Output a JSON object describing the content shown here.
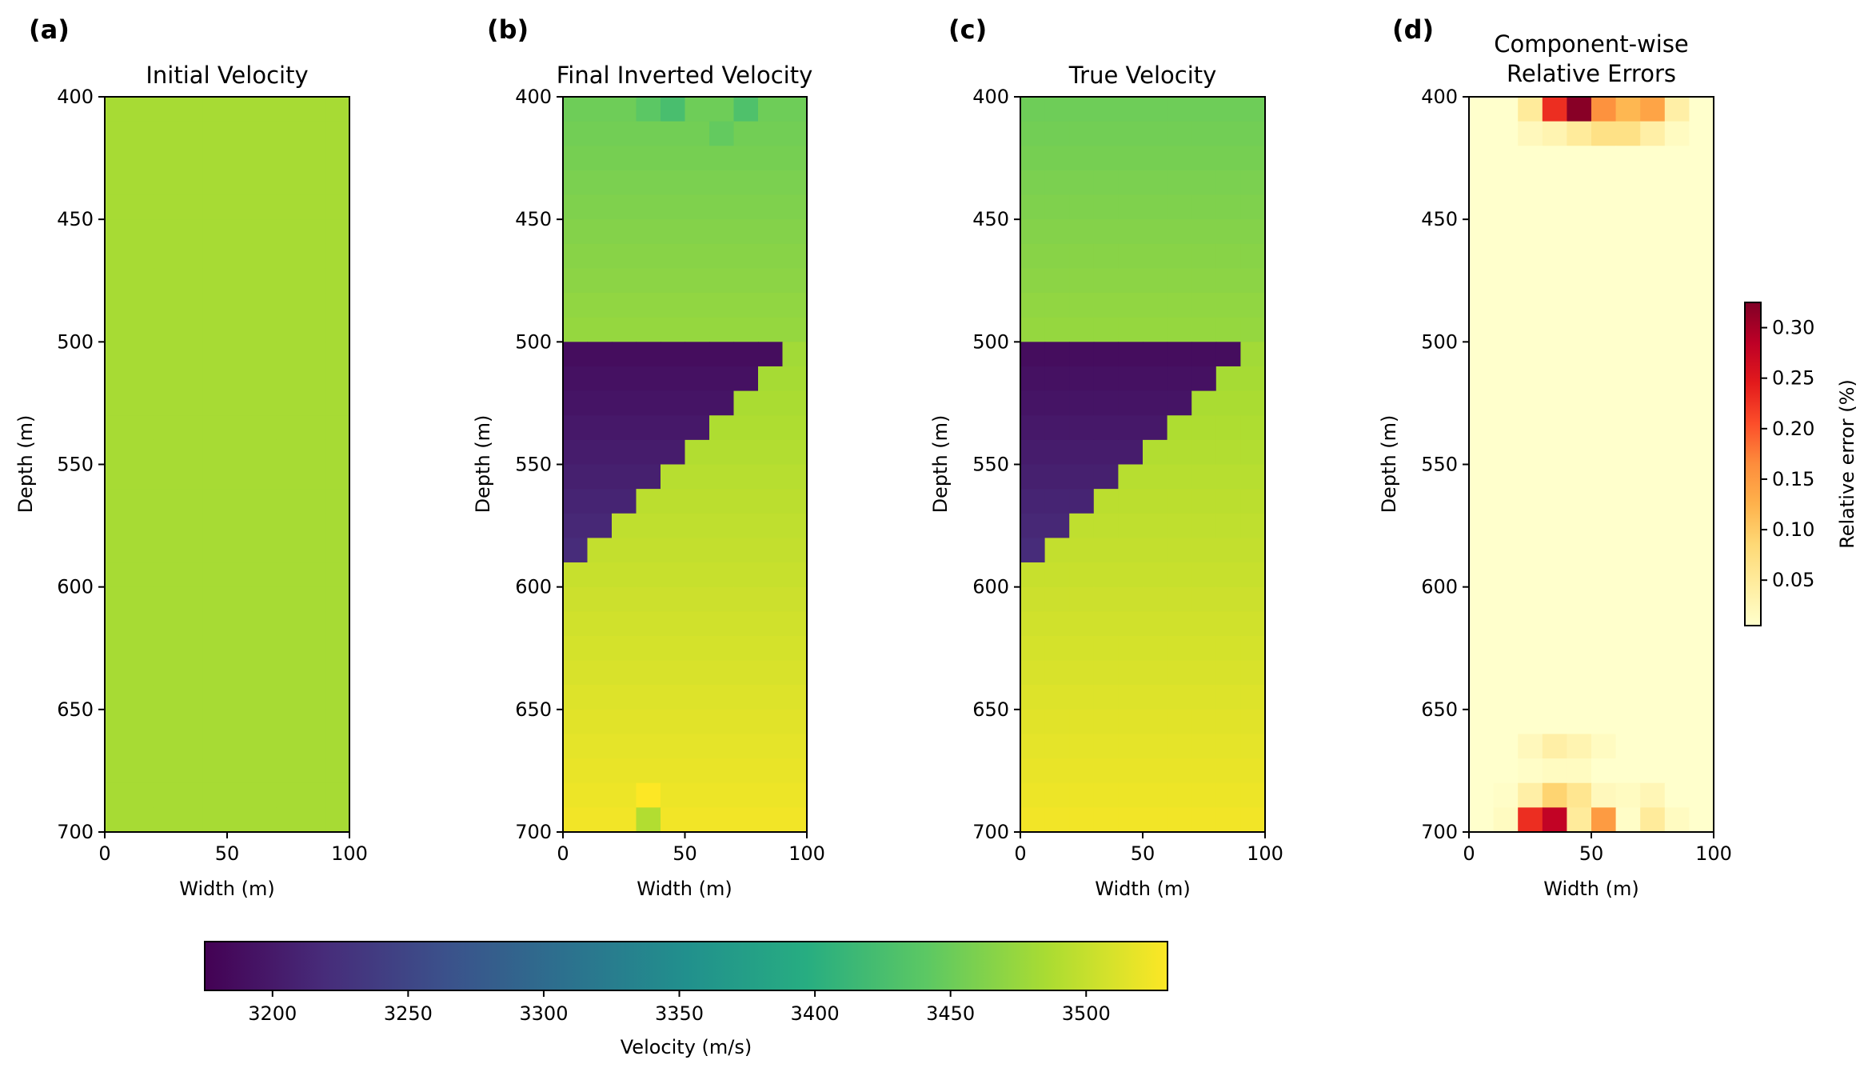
{
  "figure": {
    "panels": [
      {
        "letter": "(a)",
        "title_lines": [
          "Initial Velocity"
        ],
        "kind": "initial"
      },
      {
        "letter": "(b)",
        "title_lines": [
          "Final Inverted Velocity"
        ],
        "kind": "inverted"
      },
      {
        "letter": "(c)",
        "title_lines": [
          "True Velocity"
        ],
        "kind": "true"
      },
      {
        "letter": "(d)",
        "title_lines": [
          "Component-wise",
          "Relative Errors"
        ],
        "kind": "error"
      }
    ],
    "velocity_colorbar": {
      "label": "Velocity (m/s)",
      "ticks": [
        3200,
        3250,
        3300,
        3350,
        3400,
        3450,
        3500
      ],
      "range": [
        3175,
        3530
      ],
      "colormap": "viridis"
    },
    "error_colorbar": {
      "label": "Relative error (%)",
      "ticks": [
        0.05,
        0.1,
        0.15,
        0.2,
        0.25,
        0.3
      ],
      "tick_labels": [
        "0.05",
        "0.10",
        "0.15",
        "0.20",
        "0.25",
        "0.30"
      ],
      "range": [
        0.005,
        0.325
      ],
      "colormap": "YlOrRd"
    }
  },
  "chart_data": [
    {
      "type": "heatmap",
      "panel": "(a)",
      "title": "Initial Velocity",
      "xlabel": "Width (m)",
      "ylabel": "Depth (m)",
      "xlim": [
        0,
        100
      ],
      "ylim": [
        700,
        400
      ],
      "xticks": [
        0,
        50,
        100
      ],
      "yticks": [
        400,
        450,
        500,
        550,
        600,
        650,
        700
      ],
      "grid_cols": 10,
      "grid_rows": 30,
      "values": "uniform 3484 m/s over the whole model"
    },
    {
      "type": "heatmap",
      "panel": "(b)",
      "title": "Final Inverted Velocity",
      "xlabel": "Width (m)",
      "ylabel": "Depth (m)",
      "xlim": [
        0,
        100
      ],
      "ylim": [
        700,
        400
      ],
      "xticks": [
        0,
        50,
        100
      ],
      "yticks": [
        400,
        450,
        500,
        550,
        600,
        650,
        700
      ],
      "grid_cols": 10,
      "grid_rows": 30,
      "layers": [
        {
          "depth_range": [
            400,
            500
          ],
          "velocity_top": 3450,
          "velocity_bottom": 3475
        },
        {
          "depth_range": [
            500,
            600
          ],
          "wedge": "low-velocity wedge, edge from (0,600) to (100,500)",
          "velocity_top": 3185,
          "velocity_bottom": 3225
        },
        {
          "depth_range": [
            500,
            700
          ],
          "velocity_top": 3480,
          "velocity_bottom": 3525
        }
      ],
      "anomalies": [
        {
          "x": 35,
          "depth": 405,
          "velocity": 3440
        },
        {
          "x": 45,
          "depth": 405,
          "velocity": 3425
        },
        {
          "x": 75,
          "depth": 405,
          "velocity": 3430
        },
        {
          "x": 65,
          "depth": 415,
          "velocity": 3445
        },
        {
          "x": 35,
          "depth": 685,
          "velocity": 3530
        },
        {
          "x": 35,
          "depth": 695,
          "velocity": 3490
        }
      ]
    },
    {
      "type": "heatmap",
      "panel": "(c)",
      "title": "True Velocity",
      "xlabel": "Width (m)",
      "ylabel": "Depth (m)",
      "xlim": [
        0,
        100
      ],
      "ylim": [
        700,
        400
      ],
      "xticks": [
        0,
        50,
        100
      ],
      "yticks": [
        400,
        450,
        500,
        550,
        600,
        650,
        700
      ],
      "grid_cols": 10,
      "grid_rows": 30,
      "layers": [
        {
          "depth_range": [
            400,
            500
          ],
          "velocity_top": 3450,
          "velocity_bottom": 3475
        },
        {
          "depth_range": [
            500,
            600
          ],
          "wedge": "low-velocity wedge, edge from (0,600) to (100,500)",
          "velocity_top": 3185,
          "velocity_bottom": 3225
        },
        {
          "depth_range": [
            500,
            700
          ],
          "velocity_top": 3480,
          "velocity_bottom": 3525
        }
      ]
    },
    {
      "type": "heatmap",
      "panel": "(d)",
      "title": "Component-wise Relative Errors",
      "xlabel": "Width (m)",
      "ylabel": "Depth (m)",
      "xlim": [
        0,
        100
      ],
      "ylim": [
        700,
        400
      ],
      "xticks": [
        0,
        50,
        100
      ],
      "yticks": [
        400,
        450,
        500,
        550,
        600,
        650,
        700
      ],
      "grid_cols": 10,
      "grid_rows": 30,
      "background_error": 0.005,
      "cells": [
        {
          "x": 25,
          "depth": 405,
          "error": 0.05
        },
        {
          "x": 35,
          "depth": 405,
          "error": 0.23
        },
        {
          "x": 45,
          "depth": 405,
          "error": 0.32
        },
        {
          "x": 55,
          "depth": 405,
          "error": 0.16
        },
        {
          "x": 65,
          "depth": 405,
          "error": 0.12
        },
        {
          "x": 75,
          "depth": 405,
          "error": 0.14
        },
        {
          "x": 85,
          "depth": 405,
          "error": 0.04
        },
        {
          "x": 25,
          "depth": 415,
          "error": 0.02
        },
        {
          "x": 35,
          "depth": 415,
          "error": 0.03
        },
        {
          "x": 45,
          "depth": 415,
          "error": 0.05
        },
        {
          "x": 55,
          "depth": 415,
          "error": 0.07
        },
        {
          "x": 65,
          "depth": 415,
          "error": 0.07
        },
        {
          "x": 75,
          "depth": 415,
          "error": 0.04
        },
        {
          "x": 85,
          "depth": 415,
          "error": 0.015
        },
        {
          "x": 25,
          "depth": 665,
          "error": 0.02
        },
        {
          "x": 35,
          "depth": 665,
          "error": 0.04
        },
        {
          "x": 45,
          "depth": 665,
          "error": 0.03
        },
        {
          "x": 55,
          "depth": 665,
          "error": 0.015
        },
        {
          "x": 25,
          "depth": 675,
          "error": 0.01
        },
        {
          "x": 35,
          "depth": 675,
          "error": 0.015
        },
        {
          "x": 45,
          "depth": 675,
          "error": 0.015
        },
        {
          "x": 15,
          "depth": 685,
          "error": 0.01
        },
        {
          "x": 25,
          "depth": 685,
          "error": 0.04
        },
        {
          "x": 35,
          "depth": 685,
          "error": 0.09
        },
        {
          "x": 45,
          "depth": 685,
          "error": 0.06
        },
        {
          "x": 55,
          "depth": 685,
          "error": 0.02
        },
        {
          "x": 65,
          "depth": 685,
          "error": 0.015
        },
        {
          "x": 75,
          "depth": 685,
          "error": 0.025
        },
        {
          "x": 15,
          "depth": 695,
          "error": 0.015
        },
        {
          "x": 25,
          "depth": 695,
          "error": 0.23
        },
        {
          "x": 35,
          "depth": 695,
          "error": 0.28
        },
        {
          "x": 45,
          "depth": 695,
          "error": 0.05
        },
        {
          "x": 55,
          "depth": 695,
          "error": 0.15
        },
        {
          "x": 65,
          "depth": 695,
          "error": 0.01
        },
        {
          "x": 75,
          "depth": 695,
          "error": 0.05
        },
        {
          "x": 85,
          "depth": 695,
          "error": 0.015
        }
      ]
    }
  ]
}
